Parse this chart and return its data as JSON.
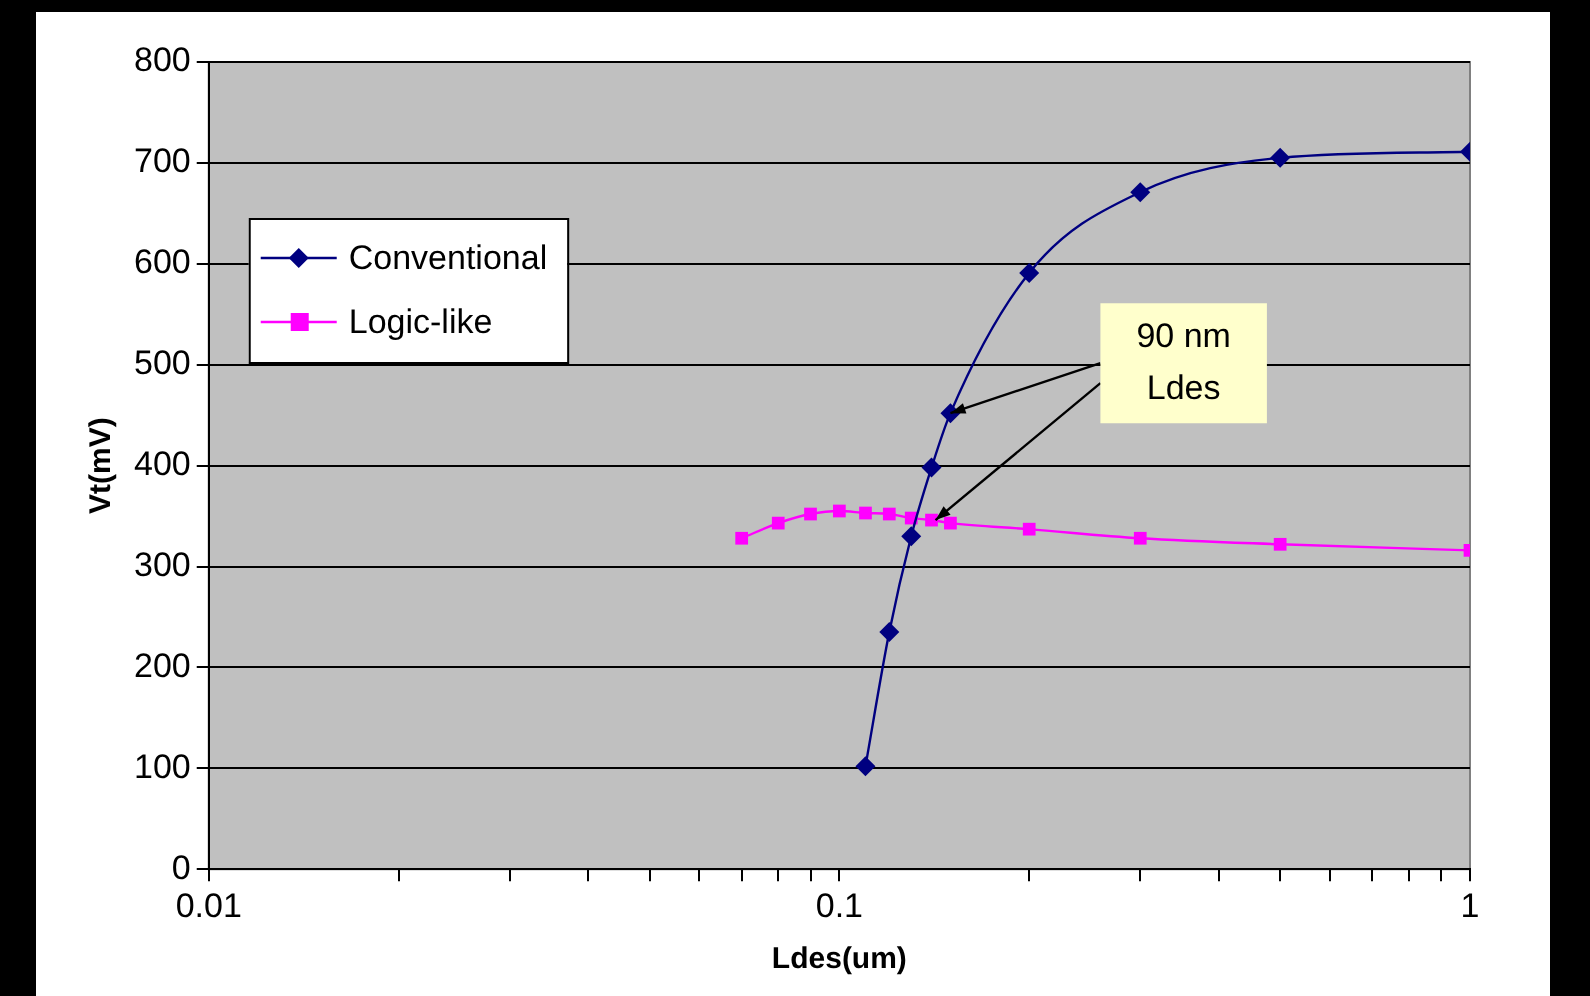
{
  "chart_data": {
    "type": "line",
    "xlabel": "Ldes(um)",
    "ylabel": "Vt(mV)",
    "log": "x",
    "xlim": [
      0.01,
      1
    ],
    "ylim": [
      0,
      800
    ],
    "xticks": [
      0.01,
      {
        "value": 0.02,
        "label": null
      },
      {
        "value": 0.03,
        "label": null
      },
      {
        "value": 0.04,
        "label": null
      },
      {
        "value": 0.05,
        "label": null
      },
      {
        "value": 0.06,
        "label": null
      },
      {
        "value": 0.07,
        "label": null
      },
      {
        "value": 0.08,
        "label": null
      },
      {
        "value": 0.09,
        "label": null
      },
      0.1,
      {
        "value": 0.2,
        "label": null
      },
      {
        "value": 0.3,
        "label": null
      },
      {
        "value": 0.4,
        "label": null
      },
      {
        "value": 0.5,
        "label": null
      },
      {
        "value": 0.6,
        "label": null
      },
      {
        "value": 0.7,
        "label": null
      },
      {
        "value": 0.8,
        "label": null
      },
      {
        "value": 0.9,
        "label": null
      },
      1
    ],
    "yticks": [
      0,
      100,
      200,
      300,
      400,
      500,
      600,
      700,
      800
    ],
    "grid": "y",
    "legend": "top left",
    "line_style": "solid",
    "series": [
      {
        "name": "Conventional",
        "color": "#000080",
        "marker": "diamond",
        "x": [
          0.11,
          0.12,
          0.13,
          0.14,
          0.15,
          0.2,
          0.3,
          0.5,
          1
        ],
        "values": [
          102,
          235,
          330,
          398,
          452,
          591,
          671,
          705,
          711
        ]
      },
      {
        "name": "Logic-like",
        "color": "#ff00ff",
        "marker": "square",
        "x": [
          0.07,
          0.08,
          0.09,
          0.1,
          0.11,
          0.12,
          0.13,
          0.14,
          0.15,
          0.2,
          0.3,
          0.5,
          1
        ],
        "values": [
          328,
          343,
          352,
          355,
          353,
          352,
          348,
          346,
          343,
          337,
          328,
          322,
          316
        ]
      }
    ],
    "annotations": [
      {
        "text": "90 nm\nLdes",
        "x": 0.15,
        "y": 452
      }
    ]
  }
}
